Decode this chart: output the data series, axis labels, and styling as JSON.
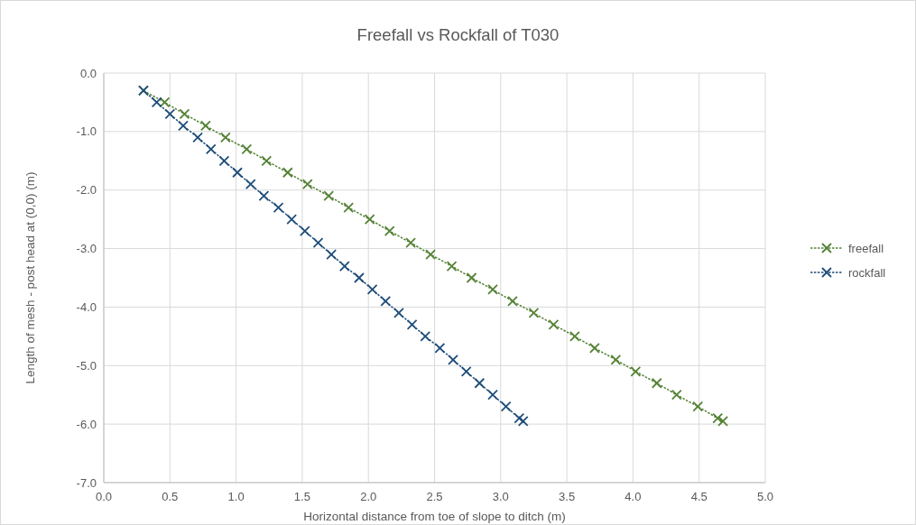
{
  "chart_data": {
    "type": "line",
    "title": "Freefall vs Rockfall of T030",
    "xlabel": "Horizontal distance from toe of slope to ditch (m)",
    "ylabel": "Length of mesh - post head at (0,0) (m)",
    "xlim": [
      0,
      5
    ],
    "xticks": [
      {
        "value": 0,
        "label": "0.0"
      },
      {
        "value": 0.5,
        "label": "0.5"
      },
      {
        "value": 1,
        "label": "1.0"
      },
      {
        "value": 1.5,
        "label": "1.5"
      },
      {
        "value": 2,
        "label": "2.0"
      },
      {
        "value": 2.5,
        "label": "2.5"
      },
      {
        "value": 3,
        "label": "3.0"
      },
      {
        "value": 3.5,
        "label": "3.5"
      },
      {
        "value": 4,
        "label": "4.0"
      },
      {
        "value": 4.5,
        "label": "4.5"
      },
      {
        "value": 5,
        "label": "5.0"
      }
    ],
    "ylim": [
      -7,
      0
    ],
    "yticks": [
      {
        "value": -7,
        "label": "-7.0"
      },
      {
        "value": -6,
        "label": "-6.0"
      },
      {
        "value": -5,
        "label": "-5.0"
      },
      {
        "value": -4,
        "label": "-4.0"
      },
      {
        "value": -3,
        "label": "-3.0"
      },
      {
        "value": -2,
        "label": "-2.0"
      },
      {
        "value": -1,
        "label": "-1.0"
      },
      {
        "value": 0,
        "label": "0.0"
      }
    ],
    "grid": true,
    "legend": "right",
    "marker": "cross",
    "line_style": "dotted",
    "series": [
      {
        "name": "freefall",
        "color": "#548235",
        "x": [
          0.3,
          0.46,
          0.61,
          0.77,
          0.92,
          1.08,
          1.23,
          1.39,
          1.54,
          1.7,
          1.85,
          2.01,
          2.16,
          2.32,
          2.47,
          2.63,
          2.78,
          2.94,
          3.09,
          3.25,
          3.4,
          3.56,
          3.71,
          3.87,
          4.02,
          4.18,
          4.33,
          4.49,
          4.64,
          4.68
        ],
        "values": [
          -0.3,
          -0.5,
          -0.7,
          -0.9,
          -1.1,
          -1.3,
          -1.5,
          -1.7,
          -1.9,
          -2.1,
          -2.3,
          -2.5,
          -2.7,
          -2.9,
          -3.1,
          -3.3,
          -3.5,
          -3.7,
          -3.9,
          -4.1,
          -4.3,
          -4.5,
          -4.7,
          -4.9,
          -5.1,
          -5.3,
          -5.5,
          -5.7,
          -5.9,
          -5.95
        ]
      },
      {
        "name": "rockfall",
        "color": "#1f4e79",
        "x": [
          0.3,
          0.4,
          0.5,
          0.6,
          0.71,
          0.81,
          0.91,
          1.01,
          1.11,
          1.21,
          1.32,
          1.42,
          1.52,
          1.62,
          1.72,
          1.82,
          1.93,
          2.03,
          2.13,
          2.23,
          2.33,
          2.43,
          2.54,
          2.64,
          2.74,
          2.84,
          2.94,
          3.04,
          3.14,
          3.17
        ],
        "values": [
          -0.3,
          -0.5,
          -0.7,
          -0.9,
          -1.1,
          -1.3,
          -1.5,
          -1.7,
          -1.9,
          -2.1,
          -2.3,
          -2.5,
          -2.7,
          -2.9,
          -3.1,
          -3.3,
          -3.5,
          -3.7,
          -3.9,
          -4.1,
          -4.3,
          -4.5,
          -4.7,
          -4.9,
          -5.1,
          -5.3,
          -5.5,
          -5.7,
          -5.9,
          -5.95
        ]
      }
    ]
  }
}
